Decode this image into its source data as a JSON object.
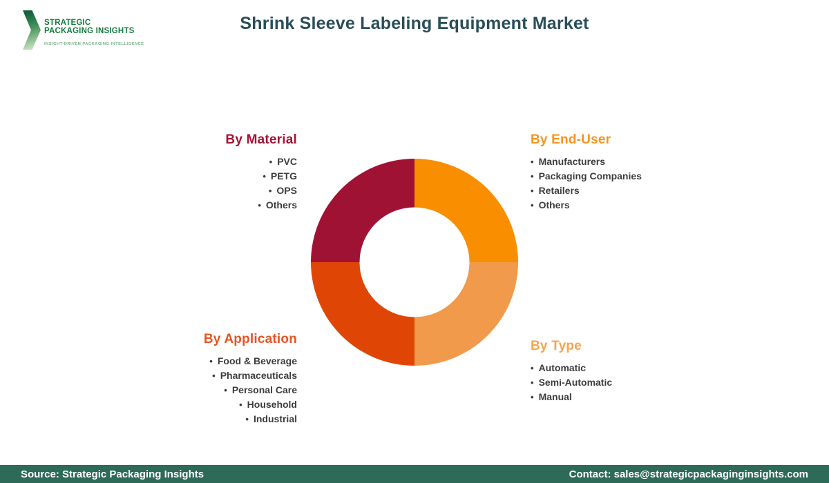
{
  "logo": {
    "line1": "STRATEGIC",
    "line2": "PACKAGING INSIGHTS",
    "tagline": "INSIGHT-DRIVEN PACKAGING INTELLIGENCE"
  },
  "title": "Shrink Sleeve Labeling Equipment Market",
  "segments": {
    "material": {
      "heading": "By Material",
      "heading_color": "#A51434",
      "items": [
        "PVC",
        "PETG",
        "OPS",
        "Others"
      ]
    },
    "end_user": {
      "heading": "By End-User",
      "heading_color": "#F7941D",
      "items": [
        "Manufacturers",
        "Packaging Companies",
        "Retailers",
        "Others"
      ]
    },
    "application": {
      "heading": "By Application",
      "heading_color": "#E8541E",
      "items": [
        "Food & Beverage",
        "Pharmaceuticals",
        "Personal Care",
        "Household",
        "Industrial"
      ]
    },
    "type": {
      "heading": "By Type",
      "heading_color": "#F7A44C",
      "items": [
        "Automatic",
        "Semi-Automatic",
        "Manual"
      ]
    }
  },
  "chart_data": {
    "type": "donut",
    "title": "Shrink Sleeve Labeling Equipment Market segmentation",
    "segments": [
      {
        "label": "By End-User",
        "value": 25,
        "color": "#F98E00"
      },
      {
        "label": "By Type",
        "value": 25,
        "color": "#F29A4B"
      },
      {
        "label": "By Application",
        "value": 25,
        "color": "#DF4605"
      },
      {
        "label": "By Material",
        "value": 25,
        "color": "#A01233"
      }
    ],
    "start_angle_deg": 0,
    "inner_radius_ratio": 0.53,
    "legend_position": "labels-around-chart"
  },
  "footer": {
    "source": "Source: Strategic Packaging Insights",
    "contact": "Contact: sales@strategicpackaginginsights.com",
    "bg_color": "#2D6B58"
  },
  "colors": {
    "title": "#2A4E59",
    "list_text": "#3D3D3D",
    "logo_green": "#157A3F",
    "logo_tagline_green": "#76B389"
  }
}
